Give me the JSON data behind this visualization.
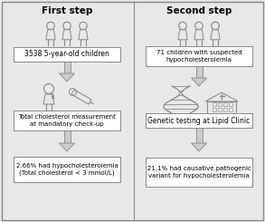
{
  "background_color": "#e8e8e8",
  "outer_border_color": "#888888",
  "box_fill": "#ffffff",
  "box_border": "#888888",
  "arrow_fill": "#cccccc",
  "arrow_edge": "#888888",
  "divider_color": "#888888",
  "icon_color": "#888888",
  "left_title": "First step",
  "right_title": "Second step",
  "left_box1": "3538 5-year-old children",
  "left_box2": "Total cholesterol measurement\nat mandatory check-up",
  "left_box3": "2.66% had hypocholesterolemia\n(Total cholesterol < 3 mmol/L)",
  "right_box1": "71 children with suspected\nhypocholesterolemia",
  "right_box2": "Genetic testing at Lipid Clinic",
  "right_box3": "21,1% had causative pathogenic\nvariant for hypocholesterolemia",
  "figsize": [
    2.93,
    2.45
  ],
  "dpi": 100
}
